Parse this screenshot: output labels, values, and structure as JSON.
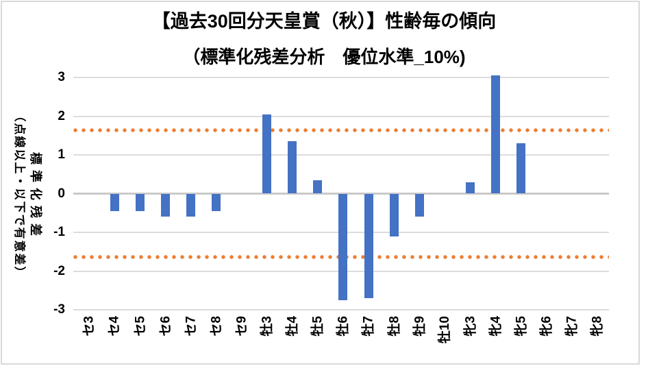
{
  "chart_data": {
    "type": "bar",
    "title": "【過去30回分天皇賞（秋）】性齢毎の傾向",
    "subtitle": "（標準化残差分析　優位水準_10%)",
    "ylabel_line1": "標準化残差",
    "ylabel_line2": "（点線以上・以下で有意差）",
    "categories": [
      "セ3",
      "セ4",
      "セ5",
      "セ6",
      "セ7",
      "セ8",
      "セ9",
      "牡3",
      "牡4",
      "牡5",
      "牡6",
      "牡7",
      "牡8",
      "牡9",
      "牡10",
      "牝3",
      "牝4",
      "牝5",
      "牝6",
      "牝7",
      "牝8"
    ],
    "values": [
      0,
      -0.45,
      -0.45,
      -0.6,
      -0.6,
      -0.45,
      0,
      2.05,
      1.35,
      0.35,
      -2.75,
      -2.7,
      -1.1,
      -0.6,
      0,
      0.3,
      3.05,
      1.3,
      0,
      0,
      0
    ],
    "yticks": [
      3,
      2,
      1,
      0,
      -1,
      -2,
      -3
    ],
    "ylim": [
      -3,
      3
    ],
    "threshold_upper": 1.645,
    "threshold_lower": -1.645,
    "grid": true,
    "legend": false,
    "bar_color": "#4472C4",
    "threshold_color": "#ED7D31",
    "gridline_color": "#DCDCDC",
    "axis_line_color": "#C9C9C9"
  }
}
